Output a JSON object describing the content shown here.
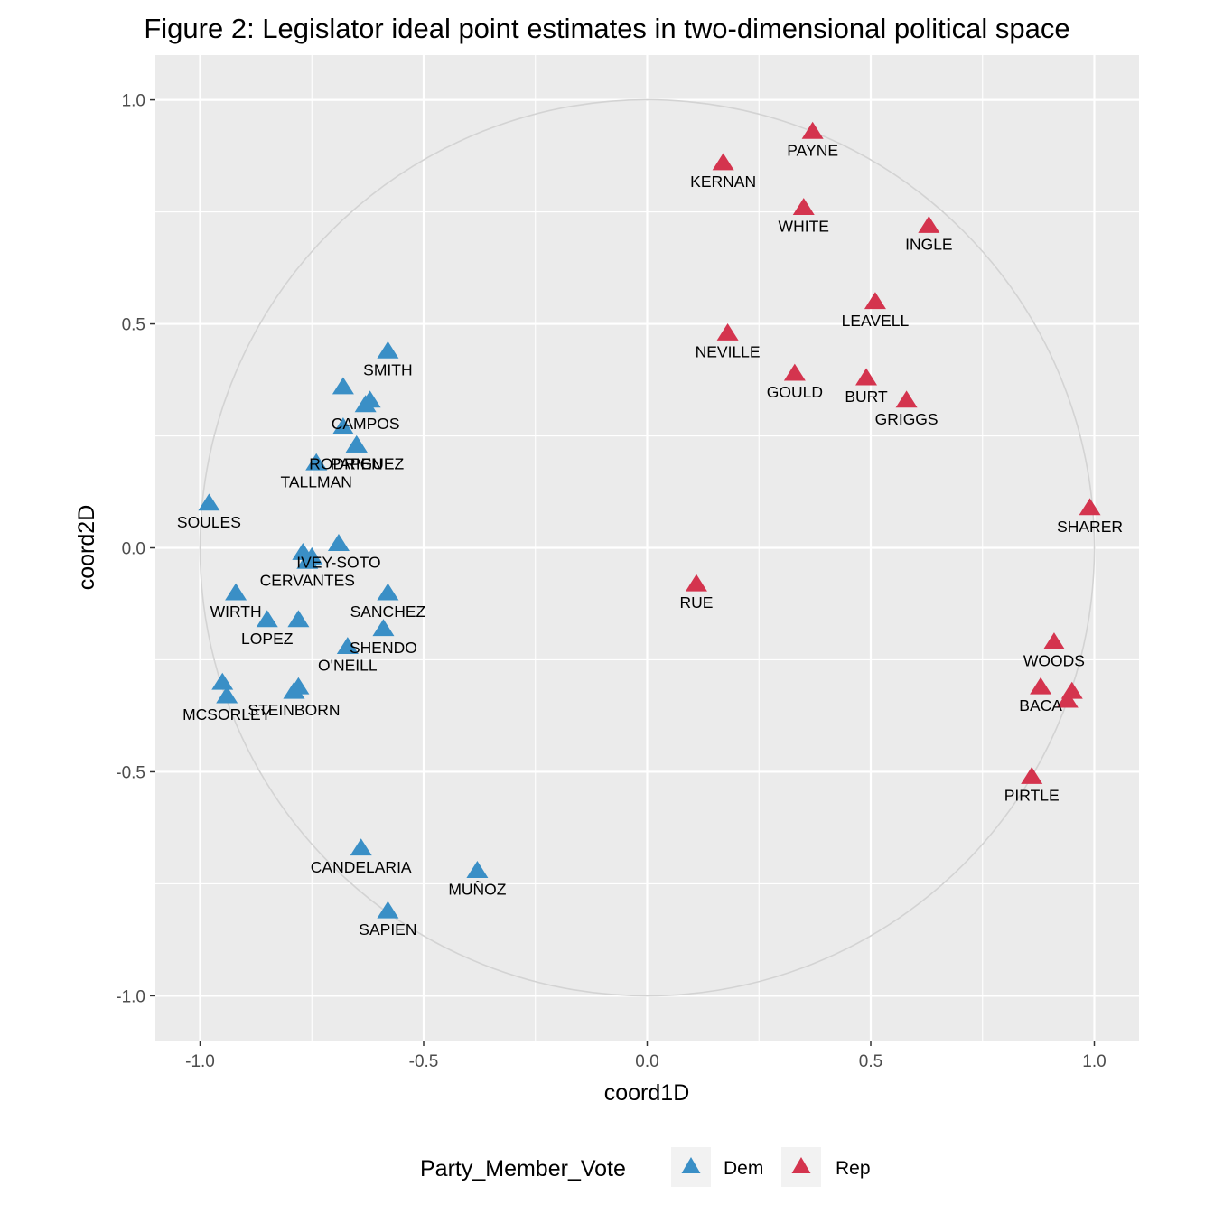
{
  "chart_data": {
    "type": "scatter",
    "title": "Figure 2: Legislator ideal point estimates in two-dimensional political space",
    "xlabel": "coord1D",
    "ylabel": "coord2D",
    "xlim": [
      -1.1,
      1.1
    ],
    "ylim": [
      -1.1,
      1.1
    ],
    "x_ticks": [
      {
        "value": -1.0,
        "label": "-1.0"
      },
      {
        "value": -0.5,
        "label": "-0.5"
      },
      {
        "value": 0.0,
        "label": "0.0"
      },
      {
        "value": 0.5,
        "label": "0.5"
      },
      {
        "value": 1.0,
        "label": "1.0"
      }
    ],
    "y_ticks": [
      {
        "value": 1.0,
        "label": "1.0"
      },
      {
        "value": 0.5,
        "label": "0.5"
      },
      {
        "value": 0.0,
        "label": "0.0"
      },
      {
        "value": -0.5,
        "label": "-0.5"
      },
      {
        "value": -1.0,
        "label": "-1.0"
      }
    ],
    "grid": true,
    "unit_circle": true,
    "legend": {
      "title": "Party_Member_Vote",
      "position": "bottom",
      "entries": [
        {
          "name": "Dem",
          "color": "#3a8fc6"
        },
        {
          "name": "Rep",
          "color": "#d4344e"
        }
      ]
    },
    "series": [
      {
        "name": "Dem",
        "color": "#3a8fc6",
        "points": [
          {
            "x": -0.58,
            "y": 0.44,
            "label": "SMITH"
          },
          {
            "x": -0.68,
            "y": 0.36,
            "label": ""
          },
          {
            "x": -0.62,
            "y": 0.33,
            "label": ""
          },
          {
            "x": -0.63,
            "y": 0.32,
            "label": "CAMPOS"
          },
          {
            "x": -0.68,
            "y": 0.27,
            "label": ""
          },
          {
            "x": -0.65,
            "y": 0.23,
            "label": "RODRIGUEZ"
          },
          {
            "x": -0.65,
            "y": 0.23,
            "label": "PAPEN"
          },
          {
            "x": -0.74,
            "y": 0.19,
            "label": "TALLMAN"
          },
          {
            "x": -0.98,
            "y": 0.1,
            "label": "SOULES"
          },
          {
            "x": -0.69,
            "y": 0.01,
            "label": "IVEY-SOTO"
          },
          {
            "x": -0.77,
            "y": -0.01,
            "label": ""
          },
          {
            "x": -0.75,
            "y": -0.02,
            "label": ""
          },
          {
            "x": -0.76,
            "y": -0.03,
            "label": "CERVANTES"
          },
          {
            "x": -0.58,
            "y": -0.1,
            "label": "SANCHEZ"
          },
          {
            "x": -0.92,
            "y": -0.1,
            "label": "WIRTH"
          },
          {
            "x": -0.85,
            "y": -0.16,
            "label": "LOPEZ"
          },
          {
            "x": -0.78,
            "y": -0.16,
            "label": ""
          },
          {
            "x": -0.59,
            "y": -0.18,
            "label": "SHENDO"
          },
          {
            "x": -0.67,
            "y": -0.22,
            "label": "O'NEILL"
          },
          {
            "x": -0.95,
            "y": -0.3,
            "label": ""
          },
          {
            "x": -0.94,
            "y": -0.33,
            "label": "MCSORLEY"
          },
          {
            "x": -0.79,
            "y": -0.32,
            "label": "STEINBORN"
          },
          {
            "x": -0.78,
            "y": -0.31,
            "label": ""
          },
          {
            "x": -0.64,
            "y": -0.67,
            "label": "CANDELARIA"
          },
          {
            "x": -0.38,
            "y": -0.72,
            "label": "MUÑOZ"
          },
          {
            "x": -0.58,
            "y": -0.81,
            "label": "SAPIEN"
          }
        ]
      },
      {
        "name": "Rep",
        "color": "#d4344e",
        "points": [
          {
            "x": 0.37,
            "y": 0.93,
            "label": "PAYNE"
          },
          {
            "x": 0.17,
            "y": 0.86,
            "label": "KERNAN"
          },
          {
            "x": 0.35,
            "y": 0.76,
            "label": "WHITE"
          },
          {
            "x": 0.63,
            "y": 0.72,
            "label": "INGLE"
          },
          {
            "x": 0.51,
            "y": 0.55,
            "label": "LEAVELL"
          },
          {
            "x": 0.18,
            "y": 0.48,
            "label": "NEVILLE"
          },
          {
            "x": 0.33,
            "y": 0.39,
            "label": "GOULD"
          },
          {
            "x": 0.49,
            "y": 0.38,
            "label": "BURT"
          },
          {
            "x": 0.58,
            "y": 0.33,
            "label": "GRIGGS"
          },
          {
            "x": 0.99,
            "y": 0.09,
            "label": "SHARER"
          },
          {
            "x": 0.11,
            "y": -0.08,
            "label": "RUE"
          },
          {
            "x": 0.91,
            "y": -0.21,
            "label": "WOODS"
          },
          {
            "x": 0.88,
            "y": -0.31,
            "label": "BACA"
          },
          {
            "x": 0.95,
            "y": -0.32,
            "label": ""
          },
          {
            "x": 0.94,
            "y": -0.34,
            "label": ""
          },
          {
            "x": 0.86,
            "y": -0.51,
            "label": "PIRTLE"
          }
        ]
      }
    ]
  }
}
